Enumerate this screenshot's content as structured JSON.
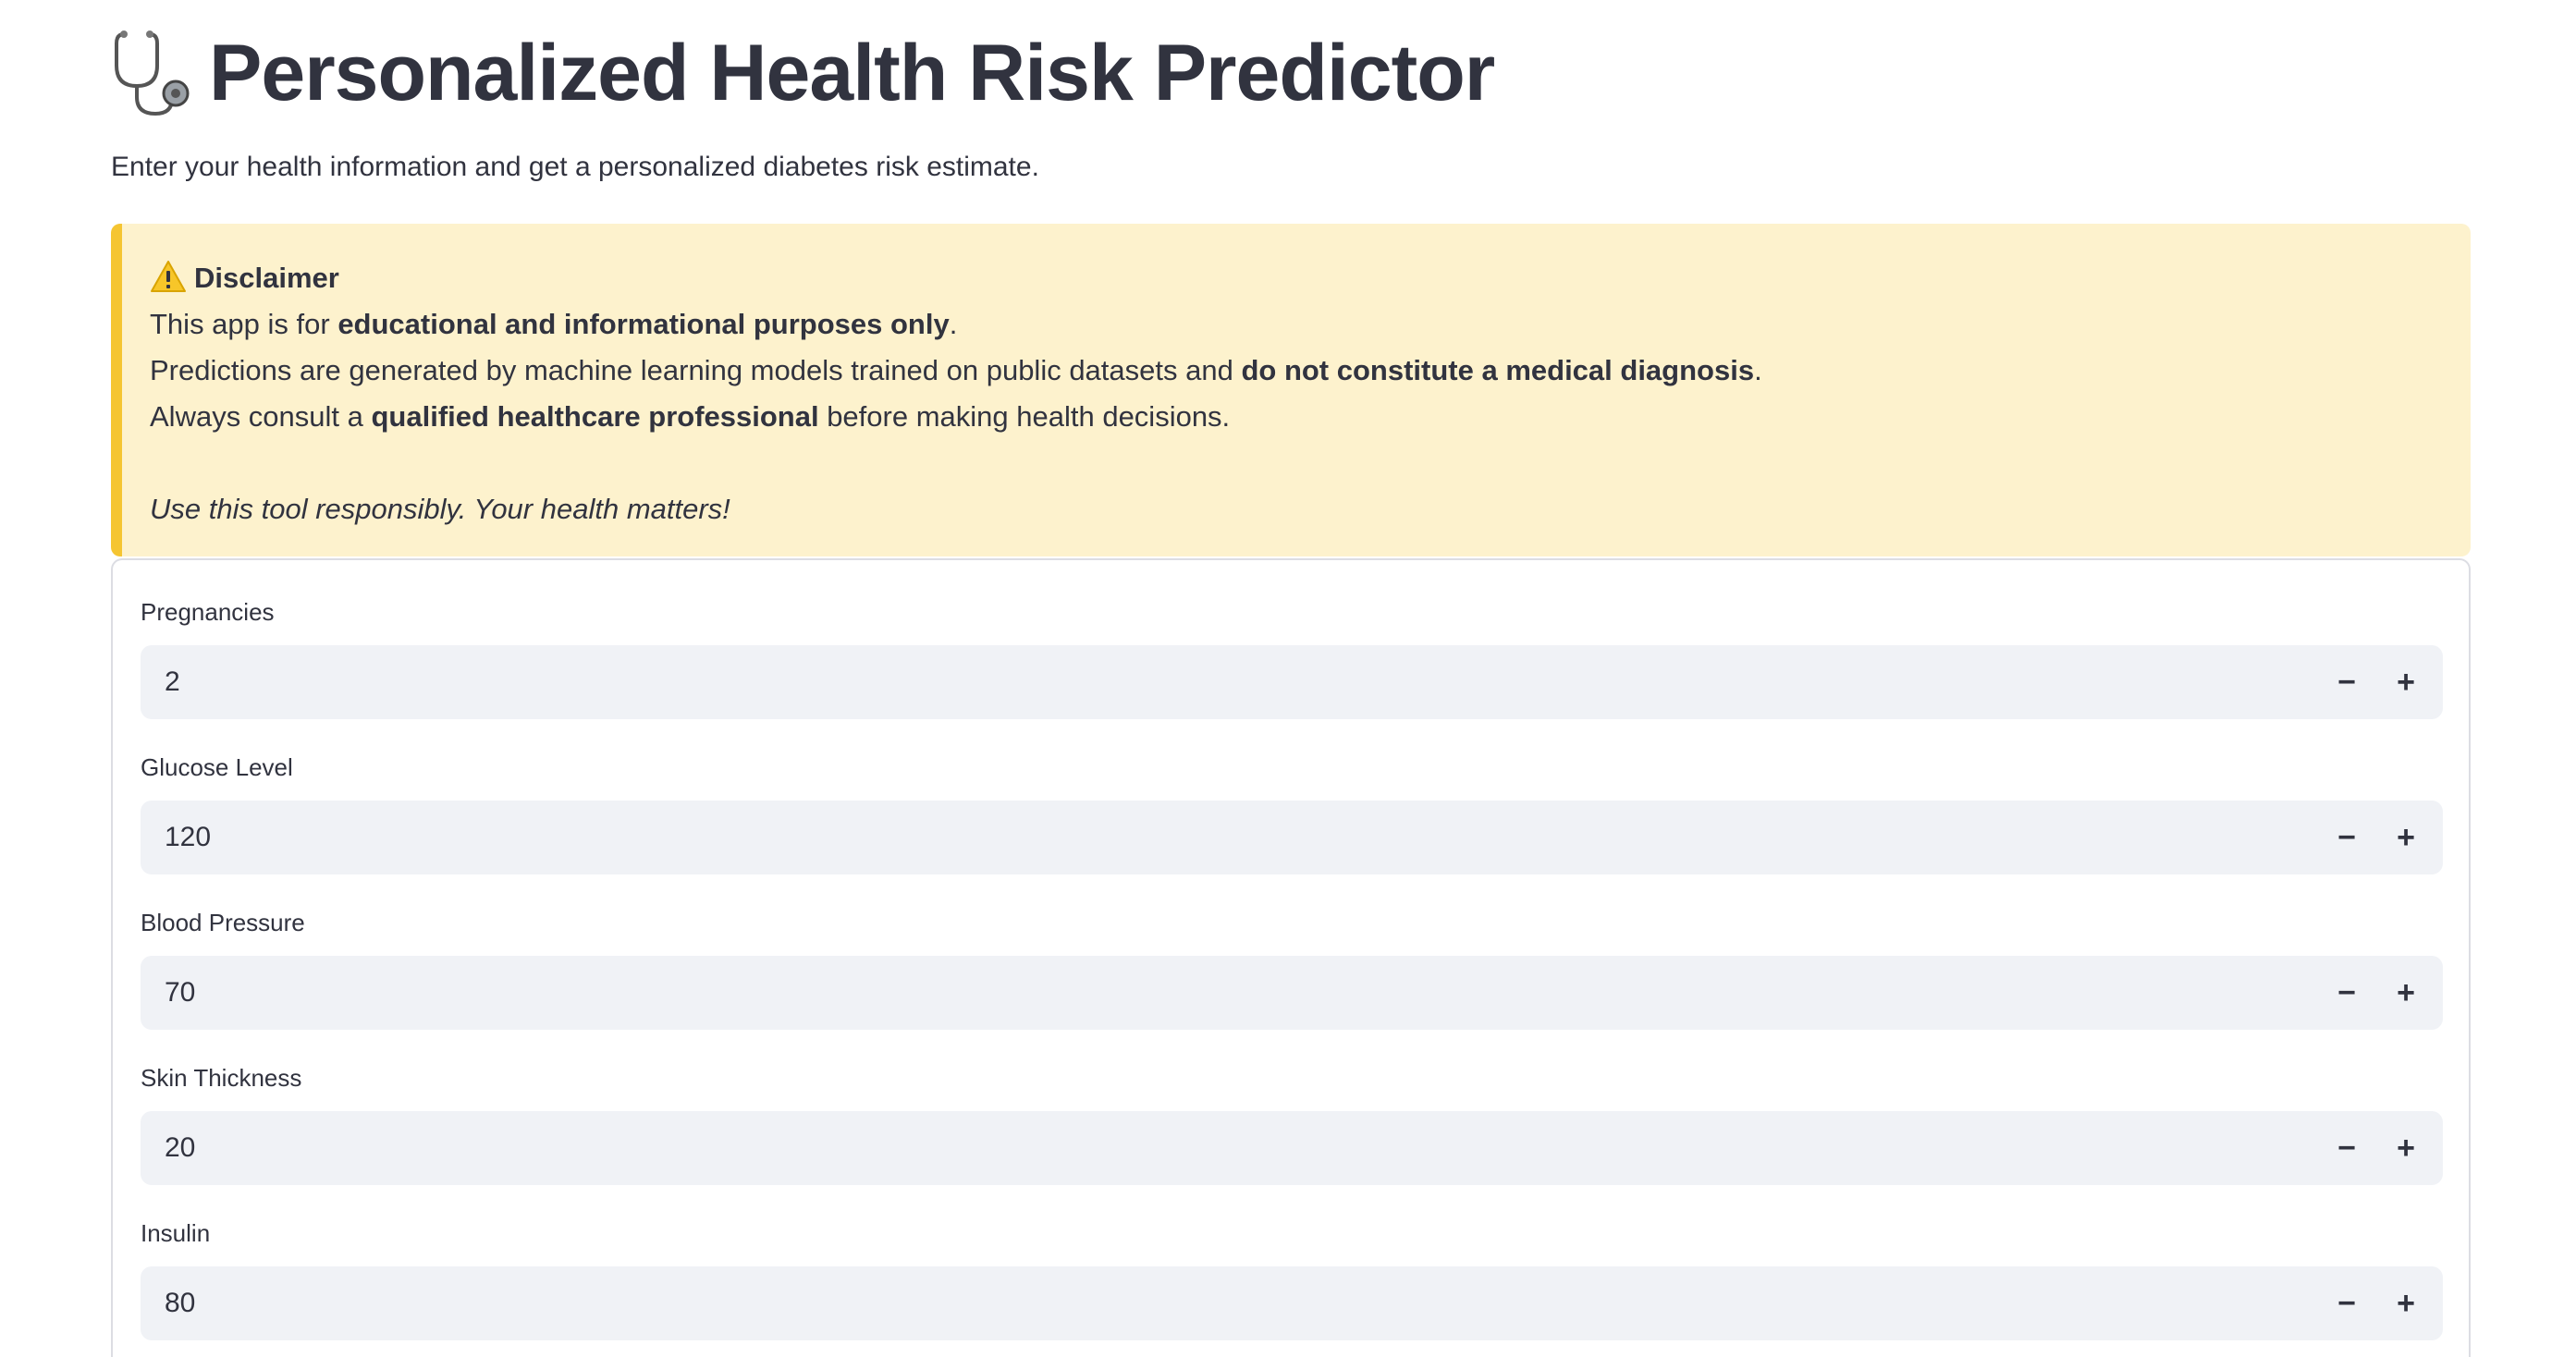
{
  "header": {
    "title_icon": "stethoscope-icon",
    "title": "Personalized Health Risk Predictor",
    "subtitle": "Enter your health information and get a personalized diabetes risk estimate."
  },
  "disclaimer": {
    "icon": "warning-icon",
    "heading": "Disclaimer",
    "line1_pre": "This app is for ",
    "line1_bold": "educational and informational purposes only",
    "line1_post": ".",
    "line2_pre": "Predictions are generated by machine learning models trained on public datasets and ",
    "line2_bold": "do not constitute a medical diagnosis",
    "line2_post": ".",
    "line3_pre": "Always consult a ",
    "line3_bold": "qualified healthcare professional",
    "line3_post": " before making health decisions.",
    "closing": "Use this tool responsibly. Your health matters!",
    "colors": {
      "background": "#fdf2cd",
      "accent": "#f5c532"
    }
  },
  "form": {
    "decrement_symbol": "−",
    "increment_symbol": "+",
    "fields": [
      {
        "label": "Pregnancies",
        "value": "2"
      },
      {
        "label": "Glucose Level",
        "value": "120"
      },
      {
        "label": "Blood Pressure",
        "value": "70"
      },
      {
        "label": "Skin Thickness",
        "value": "20"
      },
      {
        "label": "Insulin",
        "value": "80"
      }
    ]
  }
}
